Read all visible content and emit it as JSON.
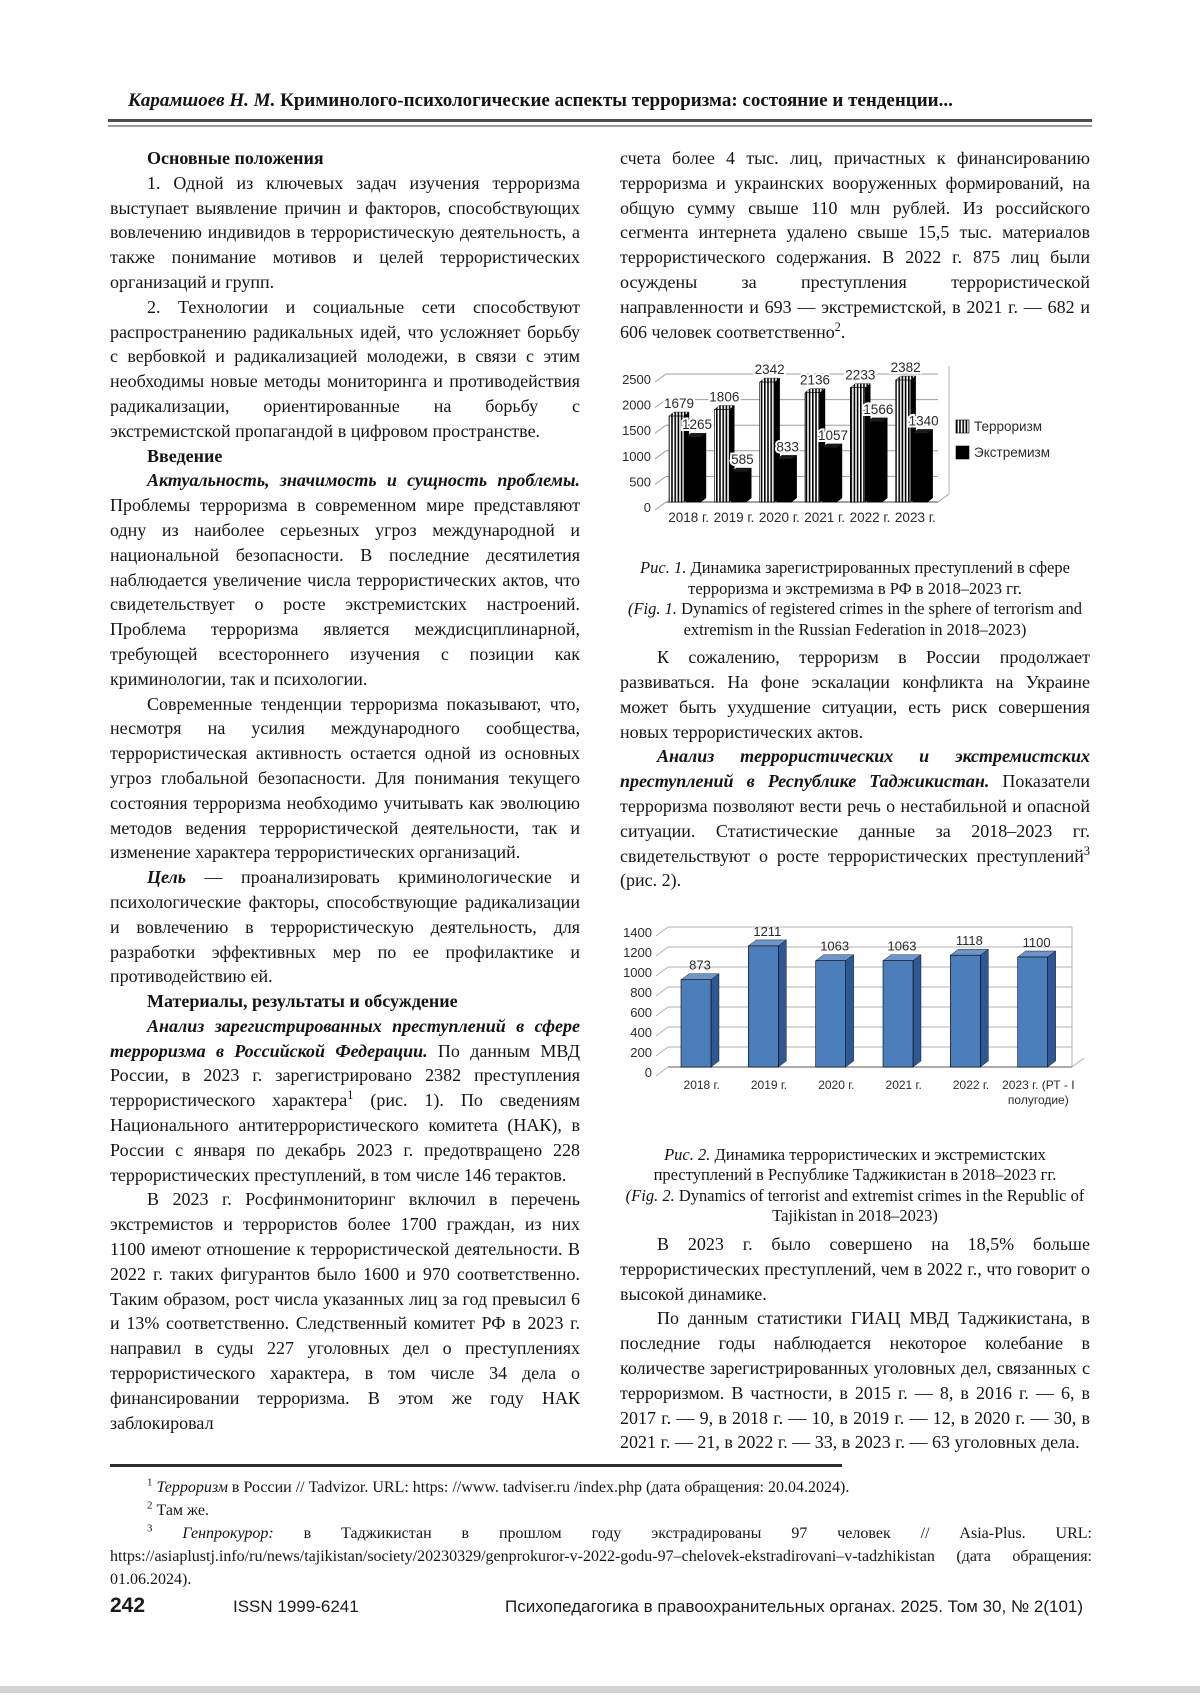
{
  "header": {
    "author": "Карамшоев Н. М.",
    "title": " Криминолого-психологические аспекты терроризма: состояние и тенденции..."
  },
  "left": {
    "h1": "Основные положения",
    "p1": "1.  Одной из ключевых задач изучения терроризма выступает выявление причин и факторов, способствующих вовлечению индивидов в террористическую деятельность, а также понимание мотивов и целей террористических организаций и групп.",
    "p2": "2.  Технологии и социальные сети способствуют распространению радикальных идей, что усложняет борьбу с вербовкой и радикализацией молодежи, в связи с этим необходимы новые методы мониторинга и противодействия радикализации, ориентированные на борьбу с экстремистской пропагандой в цифровом пространстве.",
    "h2": "Введение",
    "p3_lead": "Актуальность, значимость и сущность проблемы.",
    "p3": " Проблемы терроризма в современном мире представляют одну из наиболее серьезных угроз международной и национальной безопасности. В последние десятилетия наблюдается увеличение числа террористических актов, что свидетельствует о росте экстремистских настроений. Проблема терроризма является междисциплинарной, требующей всестороннего изучения с позиции как криминологии, так и психологии.",
    "p4": "Современные тенденции терроризма показывают, что, несмотря на усилия международного сообщества, террористическая активность остается одной из основных угроз глобальной безопасности. Для понимания текущего состояния терроризма необходимо учитывать как эволюцию методов ведения террористической деятельности, так и изменение характера террористических организаций.",
    "p5_lead": "Цель",
    "p5": " — проанализировать криминологические и психологические факторы, способствующие радикализации и вовлечению в террористическую деятельность, для разработки эффективных мер по ее профилактике и противодействию ей.",
    "h3": "Материалы, результаты и обсуждение",
    "p6_lead": "Анализ зарегистрированных преступлений в сфере терроризма в Российской Федерации.",
    "p6_a": " По данным МВД России, в 2023 г. зарегистрировано 2382 преступления террористического характера",
    "p6_fn": "1",
    "p6_b": " (рис. 1). По сведениям Национального антитеррористического комитета (НАК), в России с января по декабрь 2023 г. предотвращено 228 террористических преступлений, в том числе 146 терактов.",
    "p7": "В 2023 г. Росфинмониторинг включил в перечень экстремистов и террористов более 1700 граждан, из них 1100 имеют отношение к террористической деятельности. В 2022 г. таких фигурантов было 1600 и 970 соответственно. Таким образом, рост числа указанных лиц за год превысил 6 и 13% соответственно. Следственный комитет РФ в 2023 г. направил в суды 227 уголовных дел о преступлениях террористического характера, в том числе 34 дела о финансировании терроризма. В этом же году НАК заблокировал"
  },
  "right": {
    "p1": "счета более 4 тыс. лиц, причастных к финансированию терроризма и украинских вооруженных формирований, на общую сумму свыше 110 млн рублей. Из российского сегмента интернета удалено свыше 15,5 тыс. материалов террористического содержания. В 2022 г. 875 лиц были осуждены за преступления террористической направленности и 693 — экстремистской, в 2021 г. — 682 и 606 человек соответственно",
    "p1_fn": "2",
    "p1_end": ".",
    "fig1_ru_lead": "Рис. 1.",
    "fig1_ru": " Динамика зарегистрированных преступлений в сфере терроризма и экстремизма в РФ в 2018–2023 гг.",
    "fig1_en_lead": "(Fig. 1.",
    "fig1_en": " Dynamics of registered crimes in the sphere of terrorism and extremism in the Russian Federation in 2018–2023)",
    "p2": "К сожалению, терроризм в России продолжает развиваться. На фоне эскалации конфликта на Украине может быть ухудшение ситуации, есть риск совершения новых террористических актов.",
    "p3_lead": "Анализ террористических и экстремистских преступлений в Республике Таджикистан.",
    "p3_a": " Показатели терроризма позволяют вести речь о нестабильной и опасной ситуации. Статистические данные за 2018–2023 гг. свидетельствуют о росте террористических преступлений",
    "p3_fn": "3",
    "p3_b": " (рис. 2).",
    "fig2_ru_lead": "Рис. 2.",
    "fig2_ru": " Динамика террористических и экстремистских преступлений в Республике Таджикистан в 2018–2023 гг.",
    "fig2_en_lead": "(Fig. 2.",
    "fig2_en": " Dynamics of terrorist and extremist crimes in the Republic of Tajikistan in 2018–2023)",
    "p4": "В 2023 г. было совершено на 18,5% больше террористических преступлений, чем в 2022 г., что говорит о высокой динамике.",
    "p5": "По данным статистики ГИАЦ МВД Таджикистана, в последние годы наблюдается некоторое колебание в количестве зарегистрированных уголовных дел, связанных с терроризмом. В частности, в 2015 г. — 8, в 2016 г. — 6, в 2017 г. — 9, в 2018 г. — 10, в 2019 г. — 12, в 2020 г. — 30, в 2021 г. — 21, в 2022 г. — 33, в 2023 г. — 63 уголовных дела."
  },
  "chart_data": [
    {
      "type": "bar",
      "style": "3d-clustered-monochrome",
      "categories": [
        "2018 г.",
        "2019 г.",
        "2020 г.",
        "2021 г.",
        "2022 г.",
        "2023 г."
      ],
      "series": [
        {
          "name": "Терроризм",
          "pattern": "vertical-stripes",
          "values": [
            1679,
            1806,
            2342,
            2136,
            2233,
            2382
          ]
        },
        {
          "name": "Экстремизм",
          "color": "#000000",
          "values": [
            1265,
            585,
            833,
            1057,
            1566,
            1340
          ]
        }
      ],
      "ylim": [
        0,
        2500
      ],
      "ytick_step": 500,
      "grid": true,
      "legend_position": "right",
      "data_labels": true
    },
    {
      "type": "bar",
      "style": "3d-single-blue",
      "categories": [
        "2018 г.",
        "2019 г.",
        "2020 г.",
        "2021 г.",
        "2022 г.",
        "2023 г. (РТ - I полугодие)"
      ],
      "values": [
        873,
        1211,
        1063,
        1063,
        1118,
        1100
      ],
      "bar_color": "#4d7ebc",
      "ylim": [
        0,
        1400
      ],
      "ytick_step": 200,
      "grid": true,
      "legend_position": "none",
      "data_labels": true
    }
  ],
  "footnotes": [
    {
      "marker": "1",
      "italic": "Терроризм",
      "text": " в России // Tadvizor. URL: https: //www. tadviser.ru /index.php (дата обращения: 20.04.2024)."
    },
    {
      "marker": "2",
      "italic": "",
      "text": "Там же."
    },
    {
      "marker": "3",
      "italic": "Генпрокурор:",
      "text": " в Таджикистан в прошлом году экстрадированы 97 человек // Asia-Plus. URL: https://asiaplustj.info/ru/news/tajikistan/society/20230329/genprokuror-v-2022-godu-97–chelovek-ekstradirovani–v-tadzhikistan (дата обращения: 01.06.2024)."
    }
  ],
  "footer": {
    "page_number": "242",
    "issn": "ISSN 1999-6241",
    "journal": "Психопедагогика в правоохранительных органах. 2025. Том 30, № 2(101)"
  }
}
